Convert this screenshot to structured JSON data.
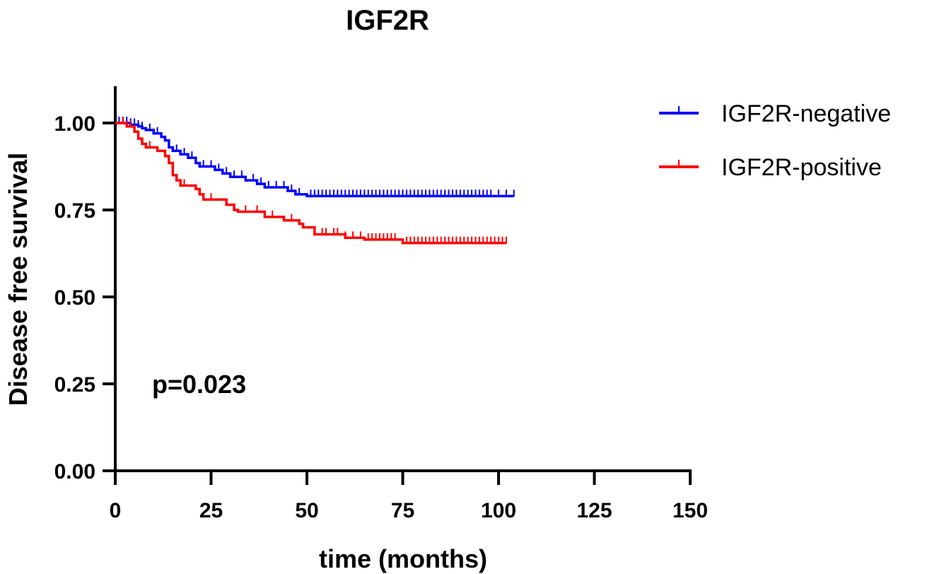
{
  "chart_data": {
    "type": "line",
    "subtype": "kaplan-meier",
    "title": "IGF2R",
    "xlabel": "time (months)",
    "ylabel": "Disease free survival",
    "xlim": [
      0,
      150
    ],
    "ylim": [
      0,
      1.1
    ],
    "xticks": [
      0,
      25,
      50,
      75,
      100,
      125,
      150
    ],
    "xtick_labels": [
      "0",
      "25",
      "50",
      "75",
      "100",
      "125",
      "150"
    ],
    "yticks": [
      0,
      0.25,
      0.5,
      0.75,
      1.0
    ],
    "ytick_labels": [
      "0.00",
      "0.25",
      "0.50",
      "0.75",
      "1.00"
    ],
    "grid": false,
    "legend_position": "top-right",
    "annotation": "p=0.023",
    "series": [
      {
        "name": "IGF2R-negative",
        "color": "#0000ff",
        "steps": [
          [
            0,
            1.0
          ],
          [
            4,
            0.995
          ],
          [
            6,
            0.99
          ],
          [
            7,
            0.985
          ],
          [
            8,
            0.98
          ],
          [
            10,
            0.97
          ],
          [
            12,
            0.96
          ],
          [
            13,
            0.95
          ],
          [
            14,
            0.93
          ],
          [
            15,
            0.92
          ],
          [
            17,
            0.91
          ],
          [
            19,
            0.9
          ],
          [
            21,
            0.885
          ],
          [
            22,
            0.875
          ],
          [
            26,
            0.865
          ],
          [
            28,
            0.855
          ],
          [
            30,
            0.845
          ],
          [
            34,
            0.835
          ],
          [
            37,
            0.825
          ],
          [
            39,
            0.815
          ],
          [
            45,
            0.805
          ],
          [
            47,
            0.795
          ],
          [
            50,
            0.79
          ],
          [
            104,
            0.79
          ]
        ],
        "censors": [
          1,
          2,
          3,
          4,
          5,
          6,
          7,
          9,
          11,
          14,
          16,
          18,
          20,
          23,
          25,
          27,
          29,
          31,
          33,
          36,
          38,
          40,
          42,
          44,
          46,
          48,
          51,
          52,
          53,
          54,
          55,
          56,
          57,
          58,
          59,
          60,
          61,
          62,
          63,
          64,
          65,
          66,
          67,
          68,
          69,
          70,
          71,
          72,
          73,
          74,
          75,
          76,
          77,
          78,
          79,
          80,
          81,
          82,
          83,
          84,
          85,
          86,
          87,
          88,
          89,
          90,
          91,
          92,
          93,
          94,
          95,
          96,
          97,
          98,
          100,
          102,
          104
        ]
      },
      {
        "name": "IGF2R-positive",
        "color": "#ff0000",
        "steps": [
          [
            0,
            1.0
          ],
          [
            3,
            0.99
          ],
          [
            5,
            0.975
          ],
          [
            6,
            0.955
          ],
          [
            7,
            0.94
          ],
          [
            8,
            0.93
          ],
          [
            11,
            0.92
          ],
          [
            13,
            0.905
          ],
          [
            14,
            0.885
          ],
          [
            15,
            0.85
          ],
          [
            16,
            0.835
          ],
          [
            17,
            0.82
          ],
          [
            21,
            0.81
          ],
          [
            22,
            0.795
          ],
          [
            23,
            0.78
          ],
          [
            29,
            0.765
          ],
          [
            31,
            0.75
          ],
          [
            32,
            0.745
          ],
          [
            39,
            0.73
          ],
          [
            44,
            0.72
          ],
          [
            48,
            0.71
          ],
          [
            49,
            0.7
          ],
          [
            52,
            0.68
          ],
          [
            60,
            0.67
          ],
          [
            65,
            0.665
          ],
          [
            75,
            0.655
          ],
          [
            102,
            0.655
          ]
        ],
        "censors": [
          2,
          4,
          9,
          18,
          25,
          34,
          37,
          41,
          46,
          54,
          55,
          57,
          58,
          60,
          62,
          64,
          66,
          67,
          68,
          69,
          70,
          71,
          72,
          73,
          76,
          77,
          78,
          79,
          80,
          81,
          82,
          83,
          84,
          85,
          86,
          87,
          88,
          89,
          90,
          91,
          92,
          93,
          94,
          95,
          96,
          97,
          98,
          99,
          100,
          101,
          102
        ]
      }
    ]
  }
}
